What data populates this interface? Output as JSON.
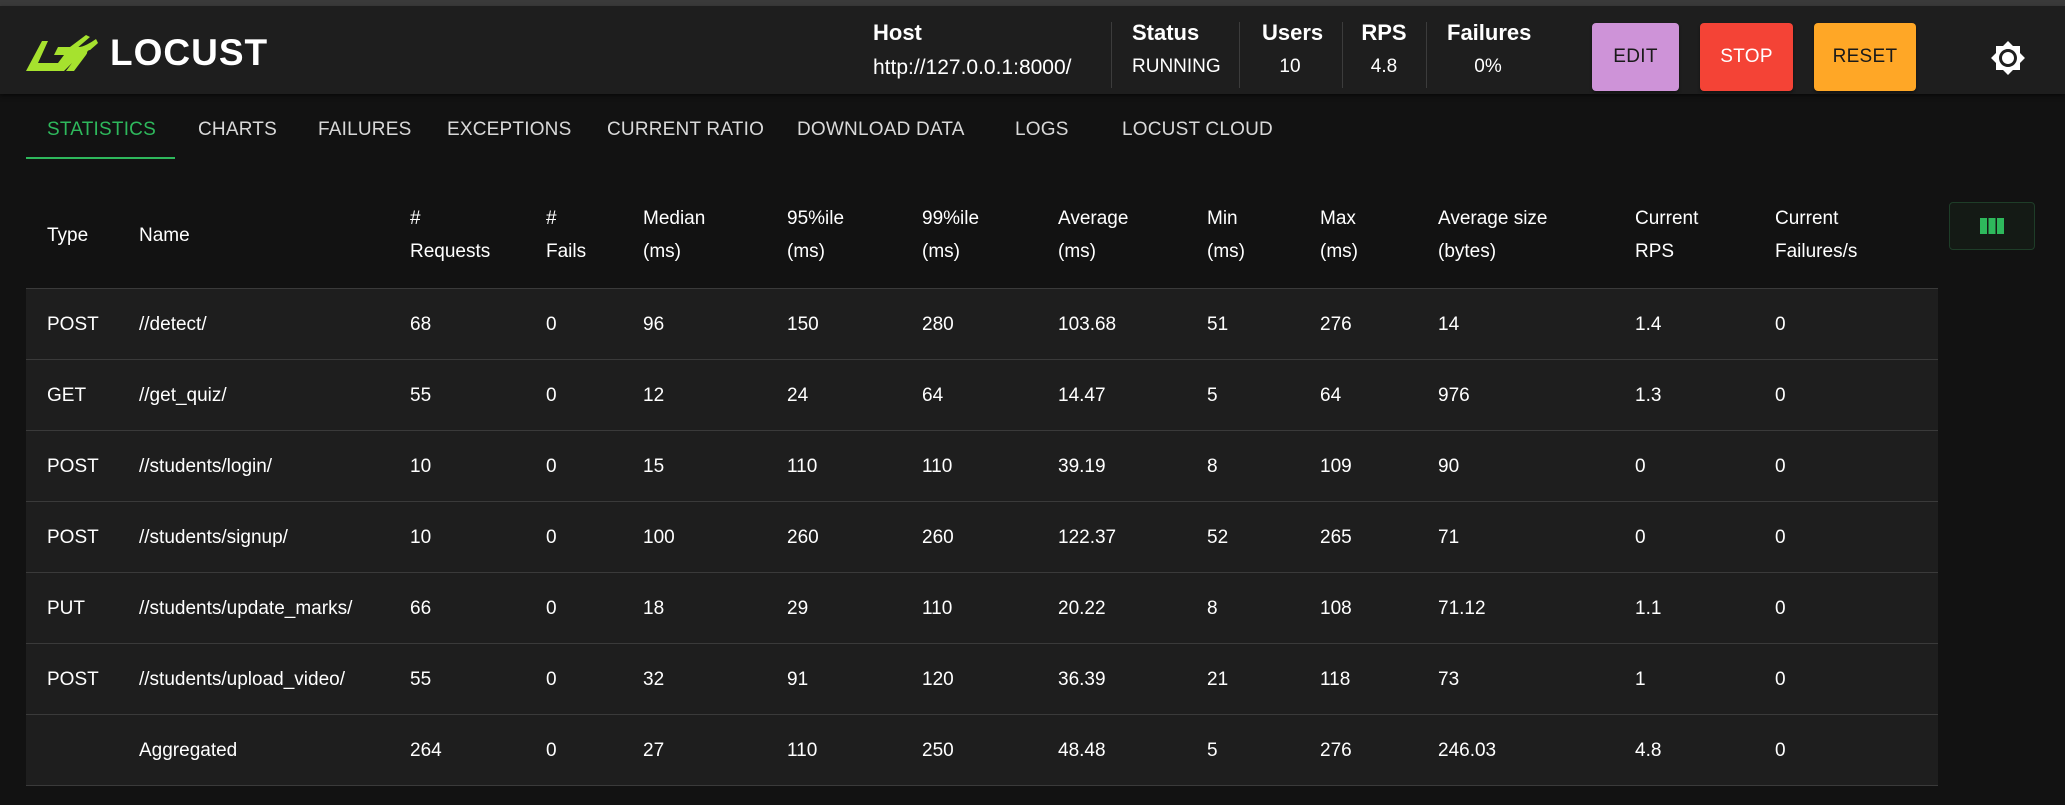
{
  "app": {
    "name": "LOCUST"
  },
  "header": {
    "host": {
      "label": "Host",
      "value": "http://127.0.0.1:8000/"
    },
    "status": {
      "label": "Status",
      "value": "RUNNING"
    },
    "users": {
      "label": "Users",
      "value": "10"
    },
    "rps": {
      "label": "RPS",
      "value": "4.8"
    },
    "failures": {
      "label": "Failures",
      "value": "0%"
    },
    "buttons": {
      "edit": "EDIT",
      "stop": "STOP",
      "reset": "RESET"
    },
    "theme_icon": "brightness-icon"
  },
  "tabs": [
    {
      "label": "STATISTICS",
      "active": true
    },
    {
      "label": "CHARTS"
    },
    {
      "label": "FAILURES"
    },
    {
      "label": "EXCEPTIONS"
    },
    {
      "label": "CURRENT RATIO"
    },
    {
      "label": "DOWNLOAD DATA"
    },
    {
      "label": "LOGS"
    },
    {
      "label": "LOCUST CLOUD"
    }
  ],
  "table": {
    "headers": [
      "Type",
      "Name",
      "#\nRequests",
      "#\nFails",
      "Median\n(ms)",
      "95%ile\n(ms)",
      "99%ile\n(ms)",
      "Average\n(ms)",
      "Min\n(ms)",
      "Max\n(ms)",
      "Average size\n(bytes)",
      "Current\nRPS",
      "Current\nFailures/s"
    ],
    "rows": [
      [
        "POST",
        "//detect/",
        "68",
        "0",
        "96",
        "150",
        "280",
        "103.68",
        "51",
        "276",
        "14",
        "1.4",
        "0"
      ],
      [
        "GET",
        "//get_quiz/",
        "55",
        "0",
        "12",
        "24",
        "64",
        "14.47",
        "5",
        "64",
        "976",
        "1.3",
        "0"
      ],
      [
        "POST",
        "//students/login/",
        "10",
        "0",
        "15",
        "110",
        "110",
        "39.19",
        "8",
        "109",
        "90",
        "0",
        "0"
      ],
      [
        "POST",
        "//students/signup/",
        "10",
        "0",
        "100",
        "260",
        "260",
        "122.37",
        "52",
        "265",
        "71",
        "0",
        "0"
      ],
      [
        "PUT",
        "//students/update_marks/",
        "66",
        "0",
        "18",
        "29",
        "110",
        "20.22",
        "8",
        "108",
        "71.12",
        "1.1",
        "0"
      ],
      [
        "POST",
        "//students/upload_video/",
        "55",
        "0",
        "32",
        "91",
        "120",
        "36.39",
        "21",
        "118",
        "73",
        "1",
        "0"
      ],
      [
        "",
        "Aggregated",
        "264",
        "0",
        "27",
        "110",
        "250",
        "48.48",
        "5",
        "276",
        "246.03",
        "4.8",
        "0"
      ]
    ],
    "column_toggle_icon": "view-column-icon"
  },
  "colors": {
    "accent": "#2eb85c",
    "logo_green": "#a6e22e",
    "edit": "#ce93d8",
    "stop": "#f44336",
    "reset": "#ffa726"
  }
}
